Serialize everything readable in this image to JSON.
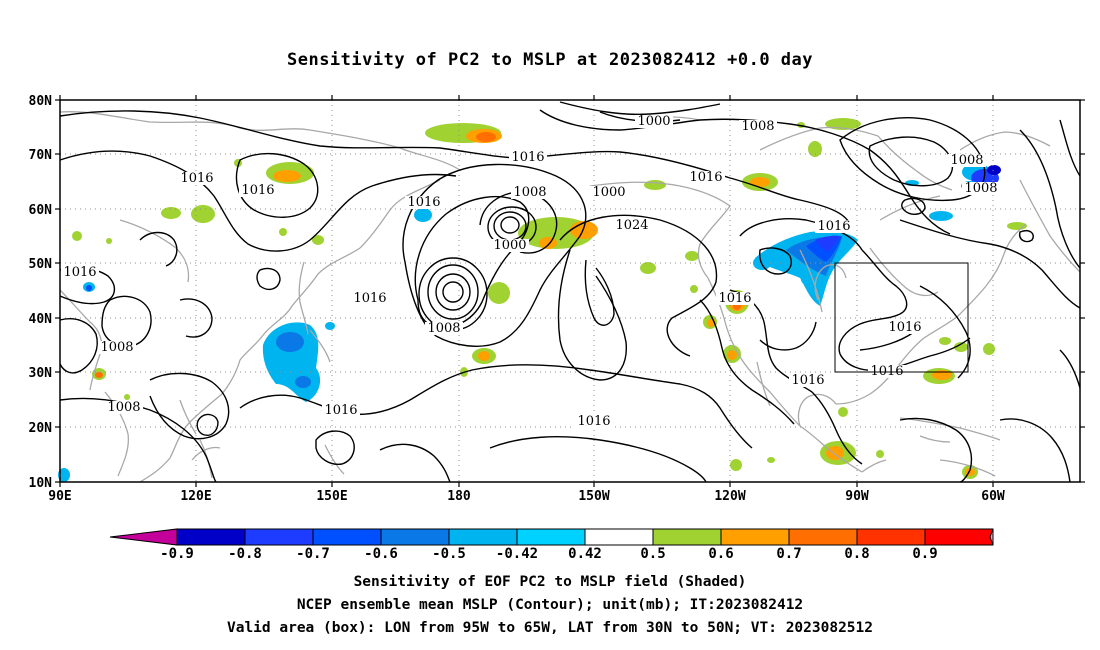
{
  "title": "Sensitivity of PC2 to MSLP at 2023082412 +0.0 day",
  "map": {
    "projection": "latlon",
    "lon_range": [
      "90E",
      "45W"
    ],
    "lat_range": [
      "10N",
      "80N"
    ],
    "lat_ticks": [
      "80N",
      "70N",
      "60N",
      "50N",
      "40N",
      "30N",
      "20N",
      "10N"
    ],
    "lon_ticks": [
      "90E",
      "120E",
      "150E",
      "180",
      "150W",
      "120W",
      "90W",
      "60W"
    ],
    "grid": "dotted",
    "coastline_color": "#a8a8a8",
    "contour_color": "#000000",
    "contour_labels": [
      "1016",
      "1016",
      "1016",
      "1000",
      "1008",
      "1016",
      "1008",
      "1000",
      "1016",
      "1016",
      "1016",
      "1024",
      "1000",
      "1008",
      "1008",
      "1016",
      "1016",
      "1016",
      "1008",
      "1008",
      "1016",
      "1016",
      "1016",
      "1016",
      "1008"
    ],
    "valid_box": {
      "lon_min": "95W",
      "lon_max": "65W",
      "lat_min": "30N",
      "lat_max": "50N"
    }
  },
  "colorbar": {
    "labels": [
      "-0.9",
      "-0.8",
      "-0.7",
      "-0.6",
      "-0.5",
      "-0.42",
      "0.42",
      "0.5",
      "0.6",
      "0.7",
      "0.8",
      "0.9"
    ],
    "colors": [
      "#c4009a",
      "#0000c8",
      "#1e3cff",
      "#0050ff",
      "#0a78e6",
      "#00b4f0",
      "#00d2ff",
      "#ffffff",
      "#a0d232",
      "#ffa000",
      "#ff6e00",
      "#ff3200",
      "#ff0000",
      "#f0a0c8"
    ]
  },
  "captions": {
    "line1": "Sensitivity of EOF PC2 to MSLP field (Shaded)",
    "line2": "NCEP ensemble mean MSLP (Contour); unit(mb); IT:2023082412",
    "line3": "Valid area (box): LON from 95W to 65W, LAT from 30N to 50N; VT: 2023082512"
  }
}
